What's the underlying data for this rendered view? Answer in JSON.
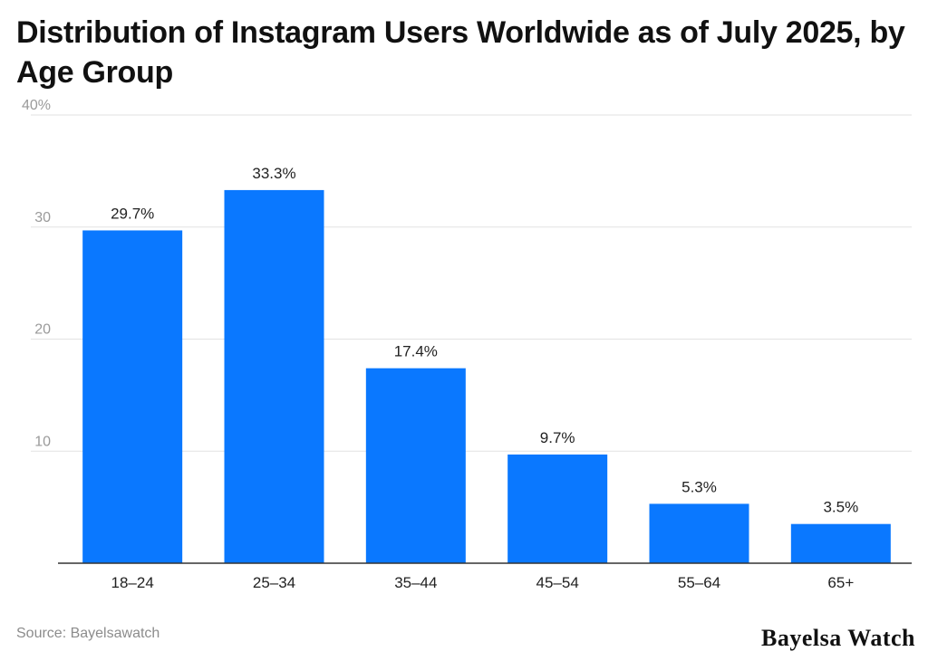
{
  "title": "Distribution of Instagram Users Worldwide as of July 2025, by Age Group",
  "source": "Source: Bayelsawatch",
  "brand": "Bayelsa Watch",
  "colors": {
    "bar": "#0a78ff",
    "grid": "#e2e2e2",
    "axis": "#333333",
    "tick_text": "#9a9a9a",
    "label_text": "#222222"
  },
  "chart_data": {
    "type": "bar",
    "categories": [
      "18–24",
      "25–34",
      "35–44",
      "45–54",
      "55–64",
      "65+"
    ],
    "values": [
      29.7,
      33.3,
      17.4,
      9.7,
      5.3,
      3.5
    ],
    "data_labels": [
      "29.7%",
      "33.3%",
      "17.4%",
      "9.7%",
      "5.3%",
      "3.5%"
    ],
    "y_ticks": [
      10,
      20,
      30,
      40
    ],
    "y_tick_labels": [
      "10",
      "20",
      "30",
      "40%"
    ],
    "ylim": [
      0,
      40
    ],
    "grid": true,
    "xlabel": "",
    "ylabel": ""
  }
}
